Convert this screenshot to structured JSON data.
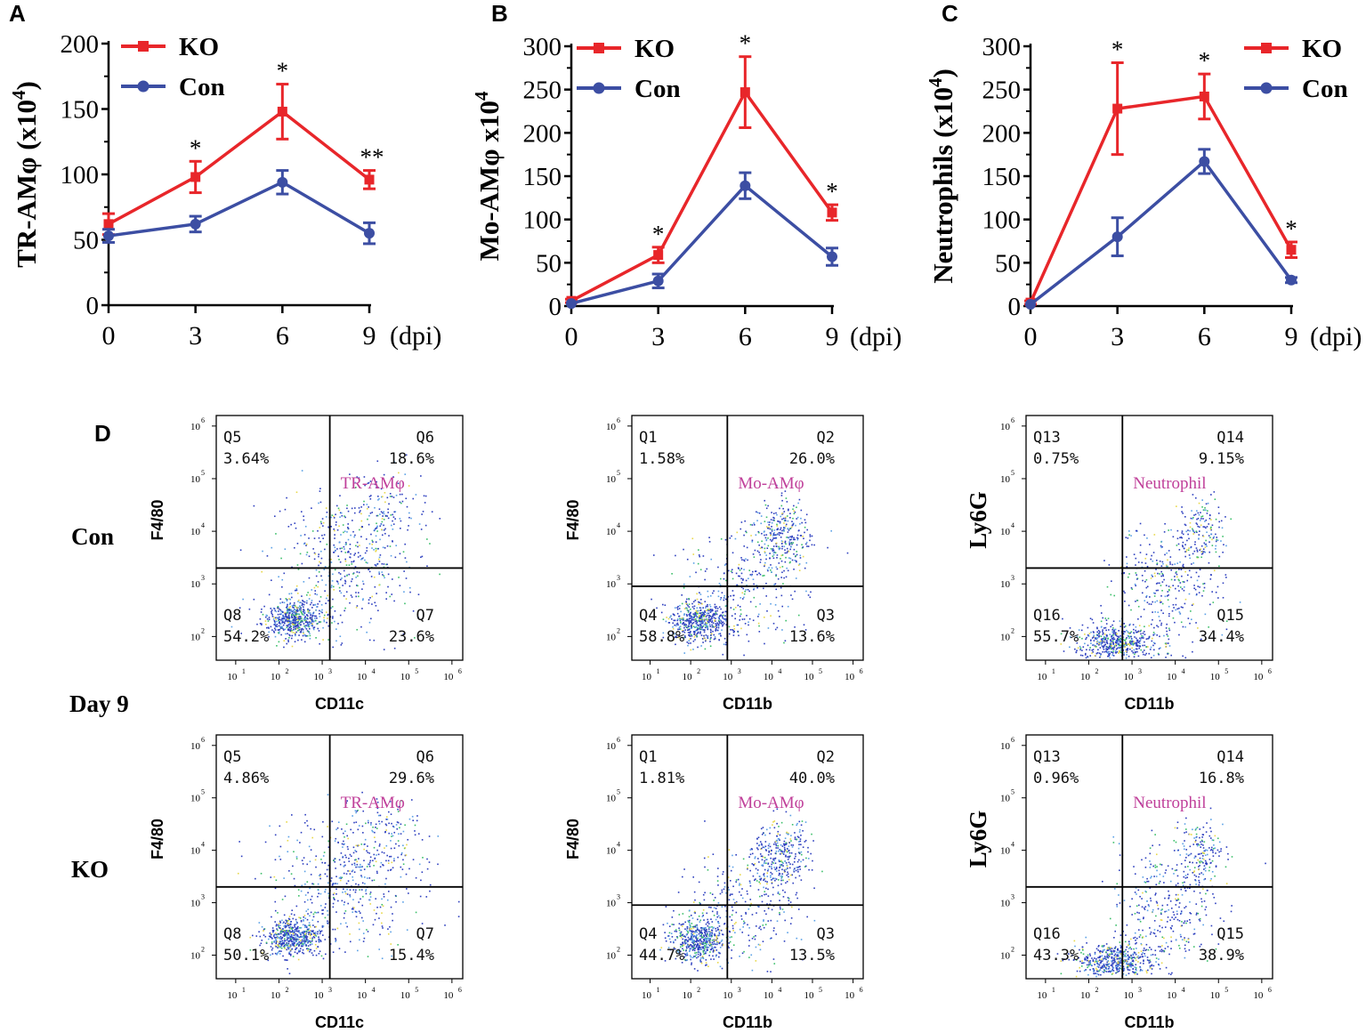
{
  "panels": {
    "a": "A",
    "b": "B",
    "c": "C",
    "d": "D",
    "row_con": "Con",
    "row_day": "Day 9",
    "row_ko": "KO"
  },
  "colors": {
    "ko": "#e8262a",
    "con": "#3c4ea3",
    "axis": "#000000",
    "gate_label": "#c0409a"
  },
  "chart_data": [
    {
      "type": "line",
      "id": "A",
      "ylabel": "TR-AMφ  (x10⁴)",
      "ylabel_main": "TR-AMφ  (x10",
      "ylabel_exp": "4",
      "ylabel_tail": ")",
      "xlabel": "(dpi)",
      "x": [
        0,
        3,
        6,
        9
      ],
      "xticks": [
        "0",
        "3",
        "6",
        "9"
      ],
      "ylim": [
        0,
        200
      ],
      "yticks": [
        "0",
        "50",
        "100",
        "150",
        "200"
      ],
      "series": [
        {
          "name": "KO",
          "values": [
            62,
            98,
            148,
            96
          ],
          "errors": [
            8,
            12,
            21,
            7
          ]
        },
        {
          "name": "Con",
          "values": [
            53,
            62,
            94,
            55
          ],
          "errors": [
            5,
            6,
            9,
            8
          ]
        }
      ],
      "annotations": [
        "",
        "*",
        "*",
        "**"
      ],
      "legend": "top-left"
    },
    {
      "type": "line",
      "id": "B",
      "ylabel": "Mo-AMφ x10⁴",
      "ylabel_main": "Mo-AMφ x10",
      "ylabel_exp": "4",
      "ylabel_tail": "",
      "xlabel": "(dpi)",
      "x": [
        0,
        3,
        6,
        9
      ],
      "xticks": [
        "0",
        "3",
        "6",
        "9"
      ],
      "ylim": [
        0,
        300
      ],
      "yticks": [
        "0",
        "50",
        "100",
        "150",
        "200",
        "250",
        "300"
      ],
      "series": [
        {
          "name": "KO",
          "values": [
            6,
            59,
            247,
            108
          ],
          "errors": [
            2,
            9,
            41,
            9
          ]
        },
        {
          "name": "Con",
          "values": [
            3,
            29,
            139,
            57
          ],
          "errors": [
            1,
            8,
            15,
            10
          ]
        }
      ],
      "annotations": [
        "",
        "*",
        "*",
        "*"
      ],
      "legend": "top-left"
    },
    {
      "type": "line",
      "id": "C",
      "ylabel": "Neutrophils (x10⁴)",
      "ylabel_main": "Neutrophils (x10",
      "ylabel_exp": "4",
      "ylabel_tail": ")",
      "xlabel": "(dpi)",
      "x": [
        0,
        3,
        6,
        9
      ],
      "xticks": [
        "0",
        "3",
        "6",
        "9"
      ],
      "ylim": [
        0,
        300
      ],
      "yticks": [
        "0",
        "50",
        "100",
        "150",
        "200",
        "250",
        "300"
      ],
      "series": [
        {
          "name": "KO",
          "values": [
            4,
            228,
            242,
            65
          ],
          "errors": [
            2,
            53,
            26,
            9
          ]
        },
        {
          "name": "Con",
          "values": [
            2,
            80,
            167,
            30
          ],
          "errors": [
            1,
            22,
            14,
            3
          ]
        }
      ],
      "annotations": [
        "",
        "*",
        "*",
        "*"
      ],
      "legend": "top-right"
    }
  ],
  "facs": [
    {
      "id": "con-tr",
      "group": "Con",
      "xlabel": "CD11c",
      "ylabel": "F4/80",
      "gate": "TR-AMφ",
      "gx": 1500,
      "gy": 2000,
      "q": [
        {
          "name": "Q5",
          "pct": "3.64%"
        },
        {
          "name": "Q6",
          "pct": "18.6%"
        },
        {
          "name": "Q8",
          "pct": "54.2%"
        },
        {
          "name": "Q7",
          "pct": "23.6%"
        }
      ]
    },
    {
      "id": "con-mo",
      "group": "Con",
      "xlabel": "CD11b",
      "ylabel": "F4/80",
      "gate": "Mo-AMφ",
      "gx": 800,
      "gy": 900,
      "q": [
        {
          "name": "Q1",
          "pct": "1.58%"
        },
        {
          "name": "Q2",
          "pct": "26.0%"
        },
        {
          "name": "Q4",
          "pct": "58.8%"
        },
        {
          "name": "Q3",
          "pct": "13.6%"
        }
      ]
    },
    {
      "id": "con-neu",
      "group": "Con",
      "xlabel": "CD11b",
      "ylabel": "Ly6G",
      "gate": "Neutrophil",
      "gx": 600,
      "gy": 2000,
      "q": [
        {
          "name": "Q13",
          "pct": "0.75%"
        },
        {
          "name": "Q14",
          "pct": "9.15%"
        },
        {
          "name": "Q16",
          "pct": "55.7%"
        },
        {
          "name": "Q15",
          "pct": "34.4%"
        }
      ]
    },
    {
      "id": "ko-tr",
      "group": "KO",
      "xlabel": "CD11c",
      "ylabel": "F4/80",
      "gate": "TR-AMφ",
      "gx": 1500,
      "gy": 2000,
      "q": [
        {
          "name": "Q5",
          "pct": "4.86%"
        },
        {
          "name": "Q6",
          "pct": "29.6%"
        },
        {
          "name": "Q8",
          "pct": "50.1%"
        },
        {
          "name": "Q7",
          "pct": "15.4%"
        }
      ]
    },
    {
      "id": "ko-mo",
      "group": "KO",
      "xlabel": "CD11b",
      "ylabel": "F4/80",
      "gate": "Mo-AMφ",
      "gx": 800,
      "gy": 900,
      "q": [
        {
          "name": "Q1",
          "pct": "1.81%"
        },
        {
          "name": "Q2",
          "pct": "40.0%"
        },
        {
          "name": "Q4",
          "pct": "44.7%"
        },
        {
          "name": "Q3",
          "pct": "13.5%"
        }
      ]
    },
    {
      "id": "ko-neu",
      "group": "KO",
      "xlabel": "CD11b",
      "ylabel": "Ly6G",
      "gate": "Neutrophil",
      "gx": 600,
      "gy": 2000,
      "q": [
        {
          "name": "Q13",
          "pct": "0.96%"
        },
        {
          "name": "Q14",
          "pct": "16.8%"
        },
        {
          "name": "Q16",
          "pct": "43.3%"
        },
        {
          "name": "Q15",
          "pct": "38.9%"
        }
      ]
    }
  ],
  "facs_axis": {
    "ticks": [
      "10",
      "10",
      "10",
      "10",
      "10",
      "10"
    ],
    "exps": [
      "1",
      "2",
      "3",
      "4",
      "5",
      "6"
    ]
  }
}
